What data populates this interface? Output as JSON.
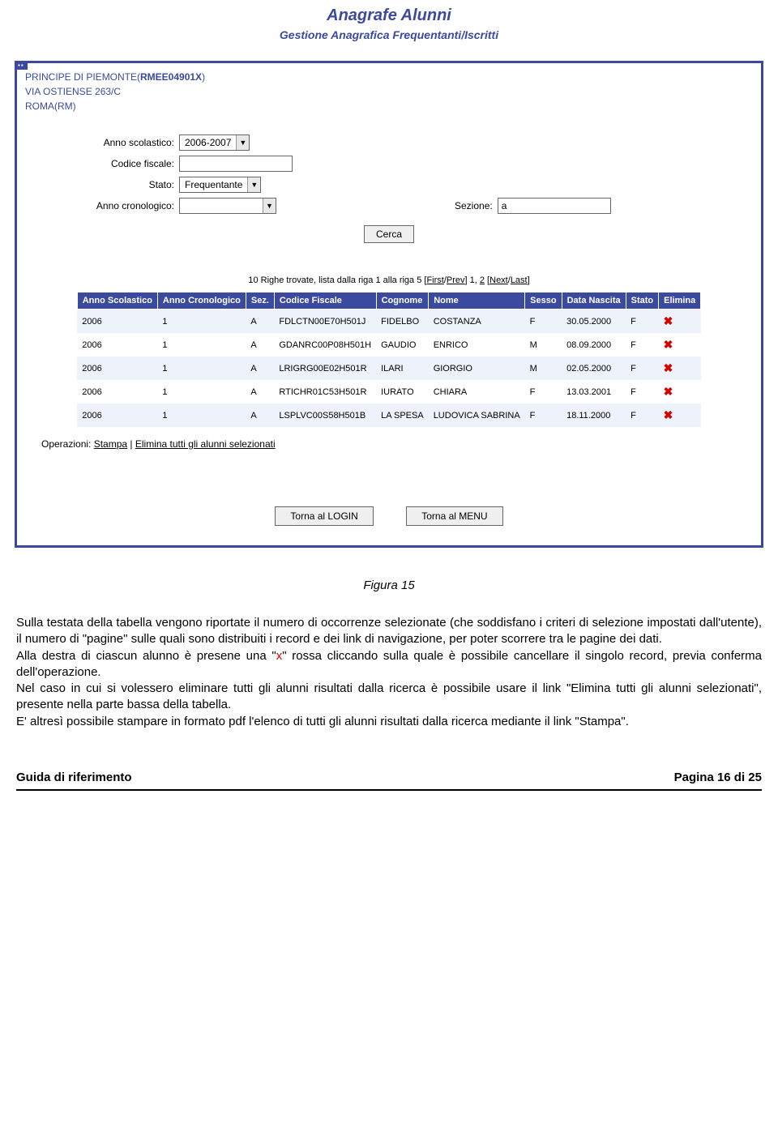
{
  "header": {
    "title": "Anagrafe Alunni",
    "subtitle": "Gestione Anagrafica Frequentanti/Iscritti"
  },
  "school": {
    "line1_prefix": "PRINCIPE DI PIEMONTE(",
    "code": "RMEE04901X",
    "line1_suffix": ")",
    "line2": "VIA OSTIENSE 263/C",
    "line3": "ROMA(RM)"
  },
  "form": {
    "anno_scolastico_label": "Anno scolastico:",
    "anno_scolastico_value": "2006-2007",
    "codice_fiscale_label": "Codice fiscale:",
    "codice_fiscale_value": "",
    "stato_label": "Stato:",
    "stato_value": "Frequentante",
    "anno_cronologico_label": "Anno cronologico:",
    "anno_cronologico_value": "",
    "sezione_label": "Sezione:",
    "sezione_value": "a",
    "cerca_label": "Cerca"
  },
  "pager": {
    "text_prefix": "10 Righe trovate, lista dalla riga 1 alla riga 5 [",
    "first": "First",
    "sep1": "/",
    "prev": "Prev",
    "mid": "] 1, ",
    "page2": "2",
    "mid2": " [",
    "next": "Next",
    "sep2": "/",
    "last": "Last",
    "suffix": "]"
  },
  "table": {
    "headers": [
      "Anno Scolastico",
      "Anno Cronologico",
      "Sez.",
      "Codice Fiscale",
      "Cognome",
      "Nome",
      "Sesso",
      "Data Nascita",
      "Stato",
      "Elimina"
    ],
    "rows": [
      [
        "2006",
        "1",
        "A",
        "FDLCTN00E70H501J",
        "FIDELBO",
        "COSTANZA",
        "F",
        "30.05.2000",
        "F"
      ],
      [
        "2006",
        "1",
        "A",
        "GDANRC00P08H501H",
        "GAUDIO",
        "ENRICO",
        "M",
        "08.09.2000",
        "F"
      ],
      [
        "2006",
        "1",
        "A",
        "LRIGRG00E02H501R",
        "ILARI",
        "GIORGIO",
        "M",
        "02.05.2000",
        "F"
      ],
      [
        "2006",
        "1",
        "A",
        "RTICHR01C53H501R",
        "IURATO",
        "CHIARA",
        "F",
        "13.03.2001",
        "F"
      ],
      [
        "2006",
        "1",
        "A",
        "LSPLVC00S58H501B",
        "LA SPESA",
        "LUDOVICA SABRINA",
        "F",
        "18.11.2000",
        "F"
      ]
    ]
  },
  "ops": {
    "prefix": "Operazioni: ",
    "stampa": "Stampa",
    "sep": " | ",
    "elimina": "Elimina tutti gli alunni selezionati"
  },
  "bottom": {
    "login": "Torna al LOGIN",
    "menu": "Torna al MENU"
  },
  "caption": "Figura 15",
  "paragraph": {
    "p1": "Sulla testata della tabella vengono riportate il numero di occorrenze selezionate (che soddisfano i criteri di selezione impostati dall'utente), il numero di \"pagine\" sulle quali sono distribuiti i record e dei link di navigazione, per poter scorrere tra le pagine dei dati.",
    "p2a": "Alla destra di ciascun alunno è presene una \"",
    "p2x": "x",
    "p2b": "\" rossa cliccando sulla quale è possibile cancellare il singolo record, previa conferma dell'operazione.",
    "p3": "Nel caso in cui si volessero eliminare tutti gli alunni risultati dalla ricerca è possibile usare il link \"Elimina tutti gli alunni selezionati\", presente nella parte bassa della tabella.",
    "p4": "E' altresì possibile stampare in formato pdf l'elenco di tutti gli alunni risultati dalla ricerca mediante il link \"Stampa\"."
  },
  "footer": {
    "left": "Guida di riferimento",
    "right": "Pagina 16 di 25"
  },
  "colors": {
    "brand": "#3b4a9e",
    "delete_x": "#d40000",
    "row_odd": "#eef2fa",
    "row_even": "#ffffff"
  }
}
